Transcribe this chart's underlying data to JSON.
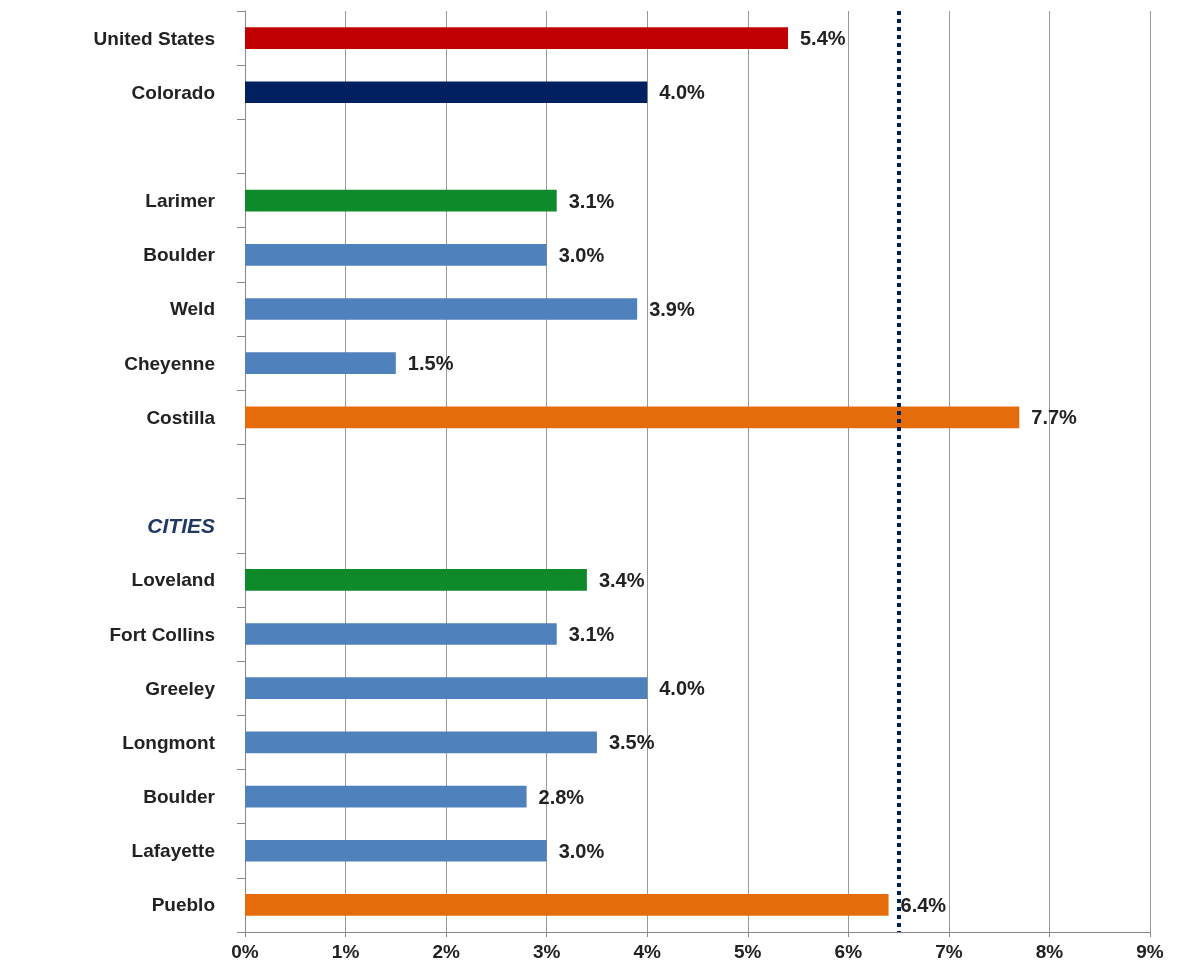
{
  "chart_data": {
    "type": "bar",
    "orientation": "horizontal",
    "categories": [
      "United States",
      "Colorado",
      null,
      "Larimer",
      "Boulder",
      "Weld",
      "Cheyenne",
      "Costilla",
      null,
      "CITIES",
      "Loveland",
      "Fort Collins",
      "Greeley",
      "Longmont",
      "Boulder",
      "Lafayette",
      "Pueblo"
    ],
    "values": [
      5.4,
      4.0,
      null,
      3.1,
      3.0,
      3.9,
      1.5,
      7.7,
      null,
      null,
      3.4,
      3.1,
      4.0,
      3.5,
      2.8,
      3.0,
      6.4
    ],
    "colors": [
      "#c00000",
      "#002060",
      "#4f81bd",
      "#0e8a2a",
      "#4f81bd",
      "#4f81bd",
      "#4f81bd",
      "#e46c0a",
      "#4f81bd",
      "#4f81bd",
      "#0e8a2a",
      "#4f81bd",
      "#4f81bd",
      "#4f81bd",
      "#4f81bd",
      "#4f81bd",
      "#e46c0a"
    ],
    "value_labels": [
      "5.4%",
      "4.0%",
      null,
      "3.1%",
      "3.0%",
      "3.9%",
      "1.5%",
      "7.7%",
      null,
      null,
      "3.4%",
      "3.1%",
      "4.0%",
      "3.5%",
      "2.8%",
      "3.0%",
      "6.4%"
    ],
    "xlim": [
      0,
      9
    ],
    "xticks": [
      {
        "value": 0,
        "label": "0%"
      },
      {
        "value": 1,
        "label": "1%"
      },
      {
        "value": 2,
        "label": "2%"
      },
      {
        "value": 3,
        "label": "3%"
      },
      {
        "value": 4,
        "label": "4%"
      },
      {
        "value": 5,
        "label": "5%"
      },
      {
        "value": 6,
        "label": "6%"
      },
      {
        "value": 7,
        "label": "7%"
      },
      {
        "value": 8,
        "label": "8%"
      },
      {
        "value": 9,
        "label": "9%"
      }
    ],
    "ref_lines": [
      {
        "axis": "x",
        "value": 6.5,
        "color": "#002060",
        "line_style": "dotted"
      }
    ],
    "grid": "x"
  }
}
